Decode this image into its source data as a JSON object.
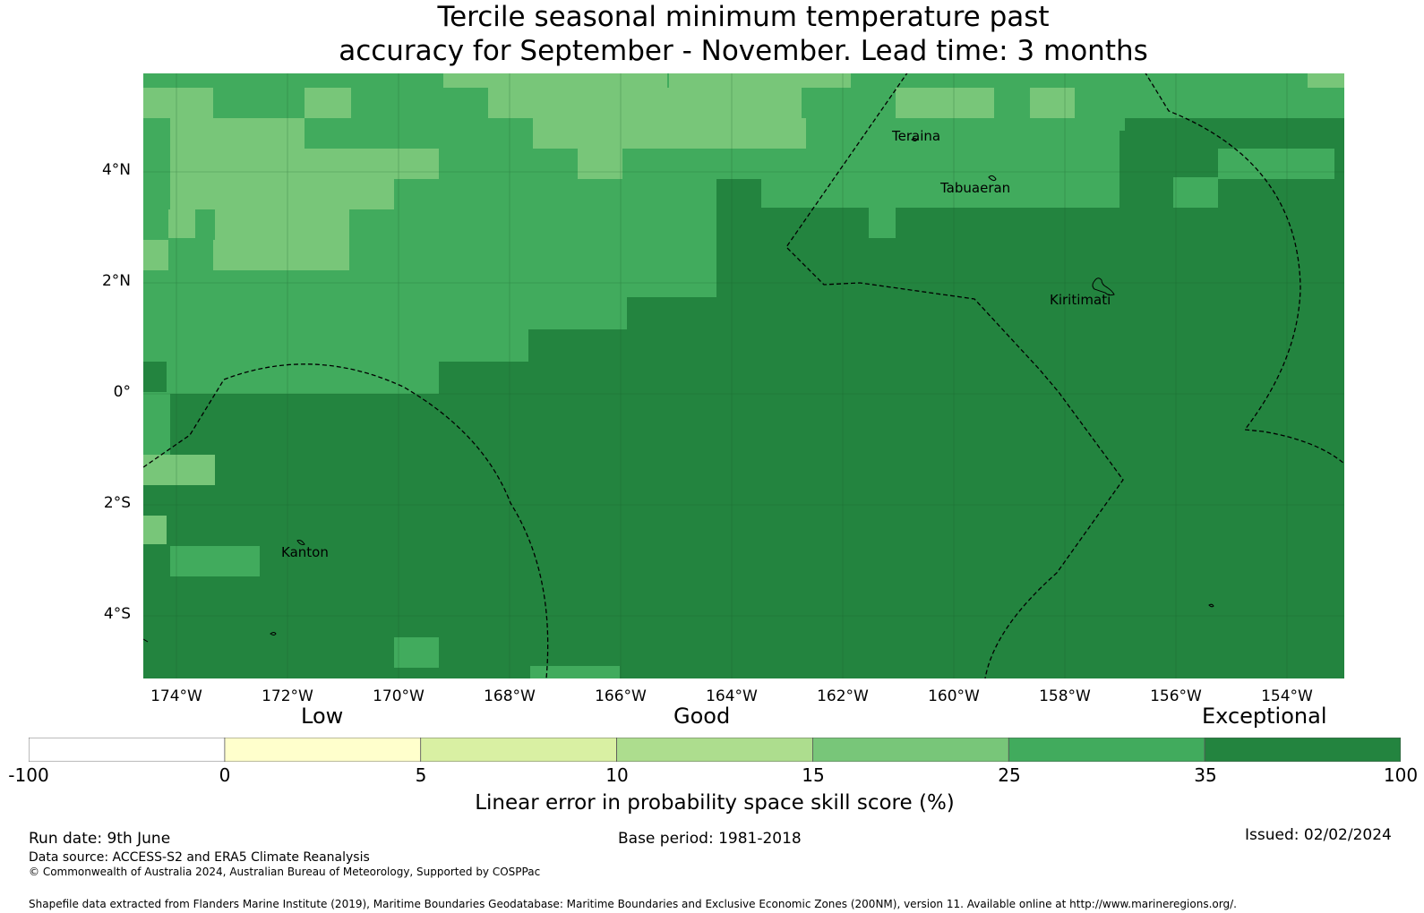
{
  "title": {
    "line1": "Tercile seasonal minimum temperature past",
    "line2": "accuracy for September - November. Lead time: 3 months"
  },
  "map": {
    "lat_labels": [
      "4°N",
      "2°N",
      "0°",
      "2°S",
      "4°S"
    ],
    "lon_labels": [
      "174°W",
      "172°W",
      "170°W",
      "168°W",
      "166°W",
      "164°W",
      "162°W",
      "160°W",
      "158°W",
      "156°W",
      "154°W"
    ],
    "places": [
      "Teraina",
      "Tabuaeran",
      "Kiritimati",
      "Kanton"
    ],
    "colors": {
      "exceptional": "#23843f",
      "good_high": "#41ab5d",
      "good_mid": "#78c679",
      "good_low": "#addd8e",
      "low_high": "#d9f0a3",
      "low": "#ffffcc",
      "none": "#ffffff"
    }
  },
  "legend": {
    "categories": [
      "Low",
      "Good",
      "Exceptional"
    ],
    "ticks": [
      "-100",
      "0",
      "5",
      "10",
      "15",
      "25",
      "35",
      "100"
    ],
    "colors": [
      "#ffffff",
      "#ffffcc",
      "#d9f0a3",
      "#addd8e",
      "#78c679",
      "#41ab5d",
      "#23843f"
    ],
    "title": "Linear error in probability space skill score (%)"
  },
  "footer": {
    "run_date": "Run date: 9th June",
    "base_period": "Base period: 1981-2018",
    "issued": "Issued: 02/02/2024",
    "data_source": "Data source: ACCESS-S2 and ERA5 Climate Reanalysis",
    "copyright": "© Commonwealth of Australia 2024, Australian Bureau of Meteorology, Supported by COSPPac",
    "shapefile": "Shapefile data extracted from Flanders Marine Institute (2019), Maritime Boundaries Geodatabase: Maritime Boundaries and Exclusive Economic Zones (200NM), version 11. Available online at http://www.marineregions.org/."
  }
}
